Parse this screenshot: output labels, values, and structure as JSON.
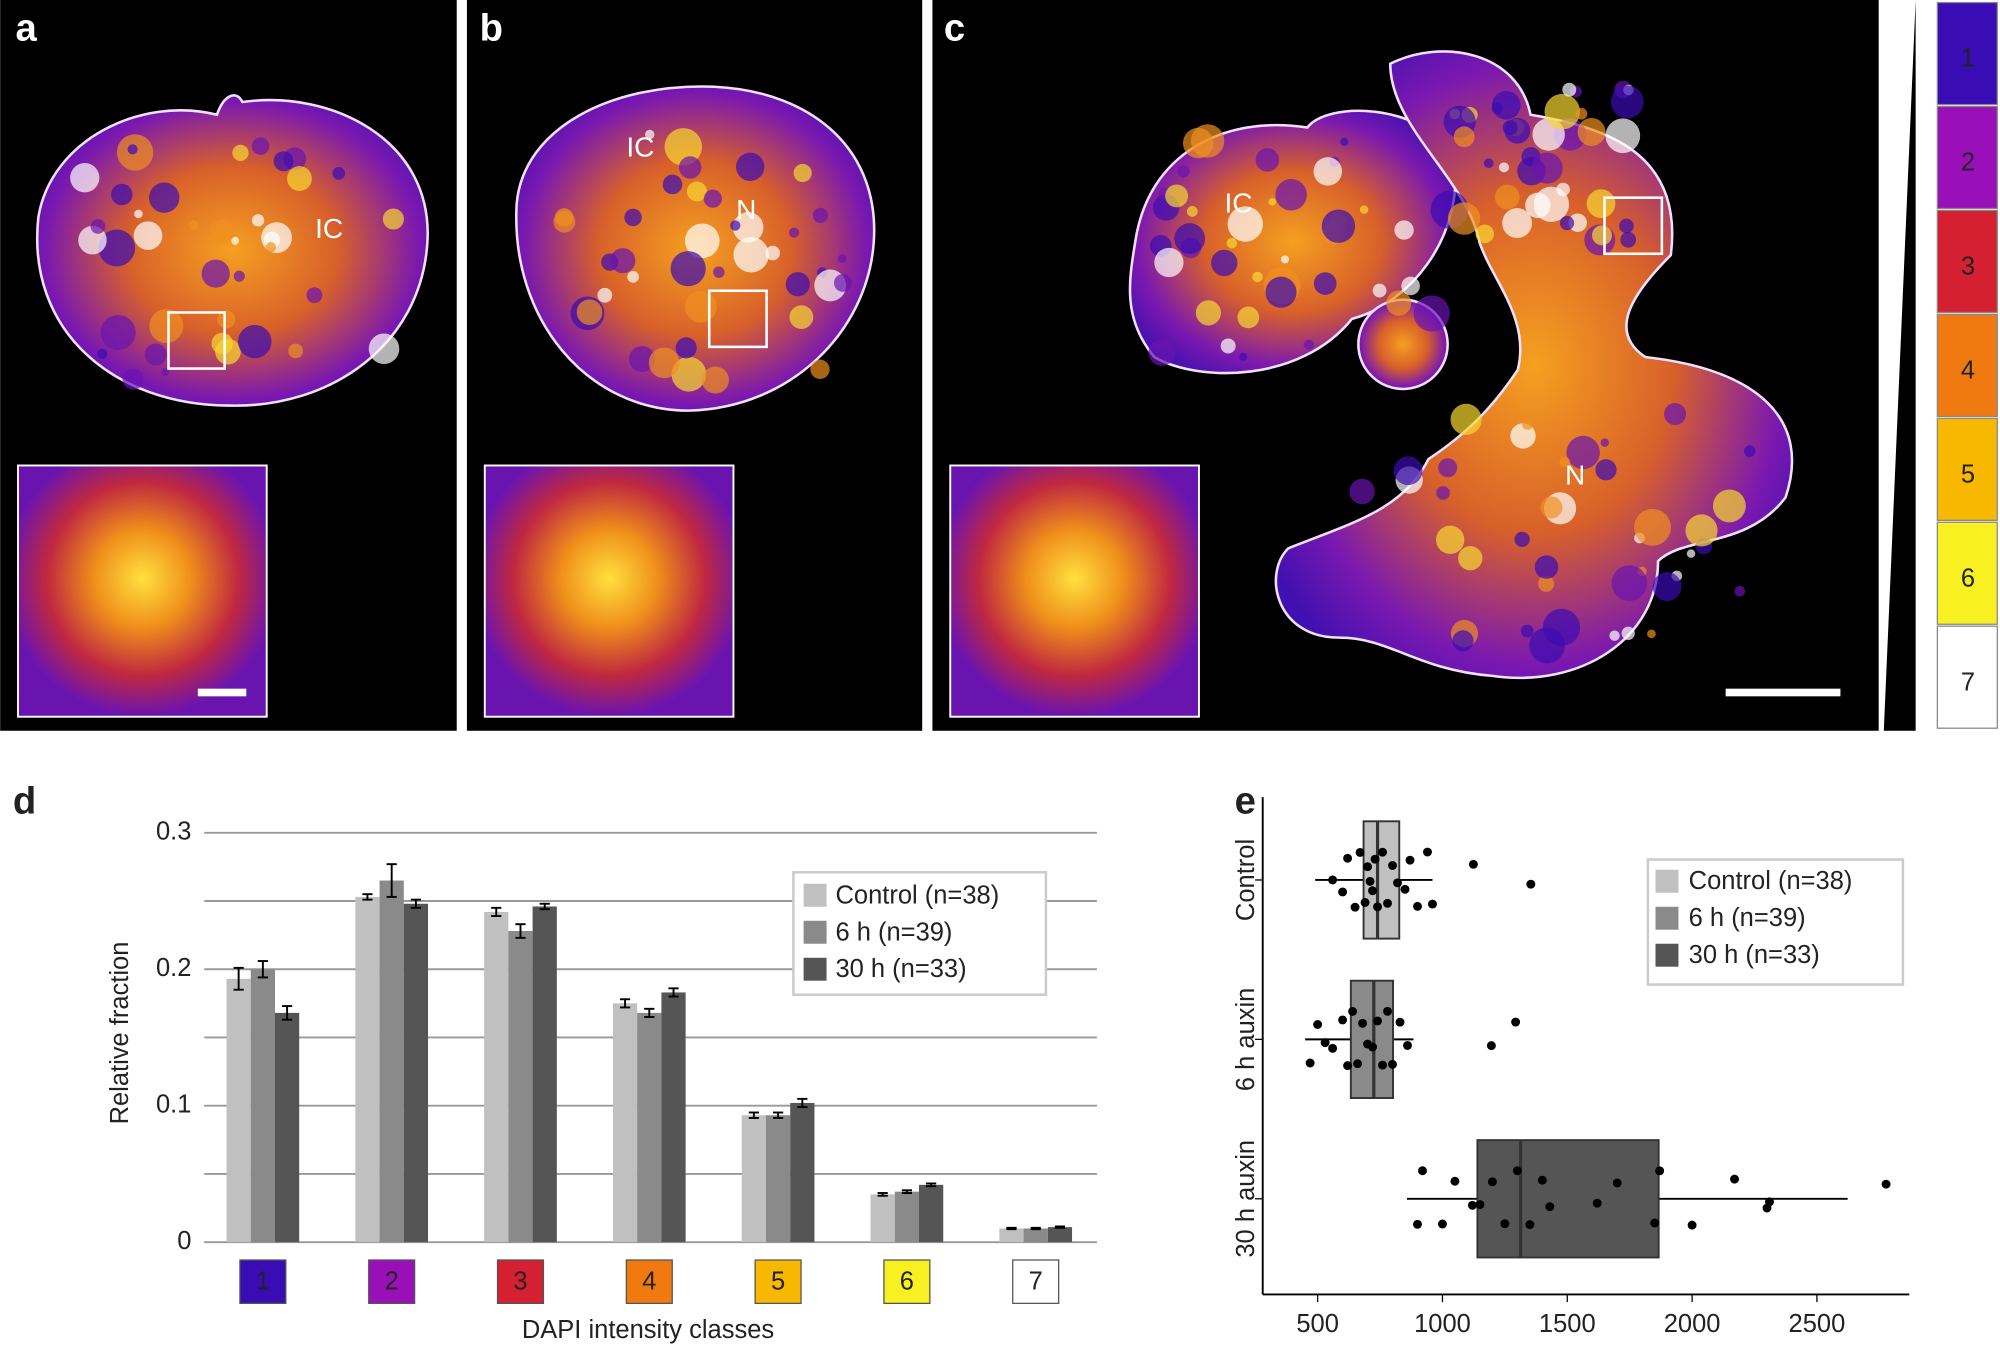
{
  "image_panels": [
    {
      "label": "a",
      "annotations": [
        "IC"
      ]
    },
    {
      "label": "b",
      "annotations": [
        "IC",
        "N"
      ]
    },
    {
      "label": "c",
      "annotations": [
        "IC",
        "N"
      ]
    }
  ],
  "chart_data": [
    {
      "type": "bar",
      "panel_label": "d",
      "xlabel": "DAPI intensity classes",
      "ylabel": "Relative fraction",
      "categories": [
        "1",
        "2",
        "3",
        "4",
        "5",
        "6",
        "7"
      ],
      "category_colors": [
        "#3a0cb4",
        "#9a10b8",
        "#d42030",
        "#f07a10",
        "#f8b800",
        "#f8f020",
        "#ffffff"
      ],
      "series": [
        {
          "name": "Control (n=38)",
          "color": "#c0c0c0",
          "values": [
            0.193,
            0.253,
            0.242,
            0.175,
            0.093,
            0.035,
            0.01
          ],
          "errors": [
            0.008,
            0.002,
            0.003,
            0.003,
            0.002,
            0.001,
            0.0005
          ]
        },
        {
          "name": "6 h (n=39)",
          "color": "#8a8a8a",
          "values": [
            0.2,
            0.265,
            0.228,
            0.168,
            0.093,
            0.037,
            0.01
          ],
          "errors": [
            0.006,
            0.012,
            0.005,
            0.003,
            0.002,
            0.001,
            0.0005
          ]
        },
        {
          "name": "30 h (n=33)",
          "color": "#555555",
          "values": [
            0.168,
            0.248,
            0.246,
            0.183,
            0.102,
            0.042,
            0.011
          ],
          "errors": [
            0.005,
            0.003,
            0.002,
            0.003,
            0.003,
            0.001,
            0.0005
          ]
        }
      ],
      "ylim": [
        0,
        0.3
      ],
      "yticks": [
        0,
        0.1,
        0.2,
        0.3
      ],
      "minor_gridlines": [
        0.05,
        0.15,
        0.25
      ],
      "grid": true,
      "legend": "upper-right"
    },
    {
      "type": "box",
      "panel_label": "e",
      "categories": [
        "Control",
        "6 h auxin",
        "30 h auxin"
      ],
      "series": [
        {
          "name": "Control (n=38)",
          "color": "#c0c0c0",
          "whisker_low": 490,
          "q1": 684,
          "median": 740,
          "q3": 827,
          "whisker_high": 960,
          "points": [
            560,
            600,
            620,
            650,
            670,
            690,
            700,
            710,
            720,
            730,
            740,
            760,
            780,
            800,
            820,
            850,
            870,
            900,
            940,
            960,
            1124,
            1354
          ]
        },
        {
          "name": "6 h (n=39)",
          "color": "#8a8a8a",
          "whisker_low": 450,
          "q1": 633,
          "median": 725,
          "q3": 802,
          "whisker_high": 884,
          "points": [
            470,
            500,
            530,
            560,
            600,
            620,
            640,
            660,
            680,
            700,
            720,
            740,
            760,
            780,
            800,
            830,
            860,
            1196,
            1293
          ]
        },
        {
          "name": "30 h (n=33)",
          "color": "#555555",
          "whisker_low": 858,
          "q1": 1140,
          "median": 1313,
          "q3": 1866,
          "whisker_high": 2623,
          "points": [
            900,
            920,
            1000,
            1050,
            1120,
            1150,
            1200,
            1250,
            1300,
            1350,
            1400,
            1430,
            1620,
            1700,
            1850,
            1870,
            2000,
            2170,
            2300,
            2310,
            2777
          ]
        }
      ],
      "xlim": [
        280,
        2870
      ],
      "xticks": [
        500,
        1000,
        1500,
        2000,
        2500
      ],
      "legend": "upper-right"
    }
  ]
}
